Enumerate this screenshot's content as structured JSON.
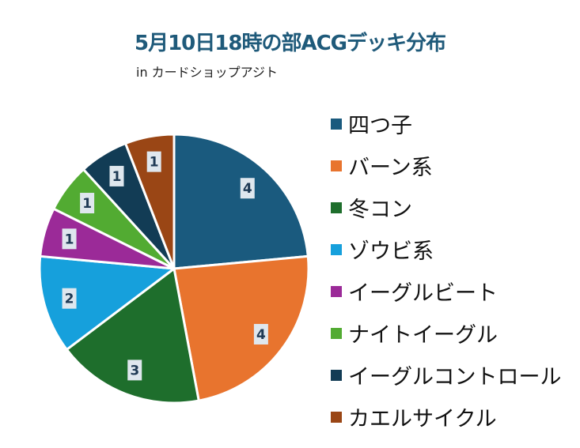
{
  "chart_data": {
    "type": "pie",
    "title": "5月10日18時の部ACGデッキ分布",
    "subtitle": "in カードショップアジト",
    "categories": [
      "四つ子",
      "バーン系",
      "冬コン",
      "ゾウビ系",
      "イーグルビート",
      "ナイトイーグル",
      "イーグルコントロール",
      "カエルサイクル"
    ],
    "values": [
      4,
      4,
      3,
      2,
      1,
      1,
      1,
      1
    ],
    "colors": [
      "#1a5a7e",
      "#e8742e",
      "#1e6e2c",
      "#16a0dc",
      "#9b2a98",
      "#52ab32",
      "#123c55",
      "#9a4615"
    ],
    "legend_position": "right",
    "data_labels": true
  }
}
